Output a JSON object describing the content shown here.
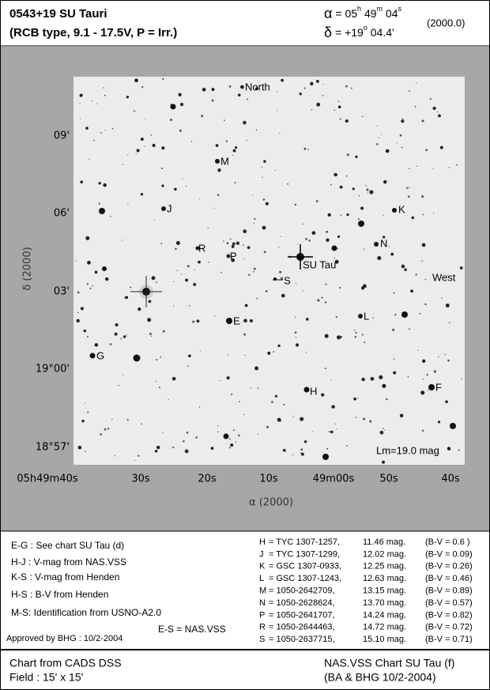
{
  "header": {
    "title": "0543+19 SU Tauri",
    "subtitle": "(RCB type, 9.1 - 17.5V, P = Irr.)",
    "ra": {
      "symbol": "α",
      "parts": [
        "= 05",
        "h",
        " 49",
        "m",
        " 04",
        "s"
      ]
    },
    "dec": {
      "symbol": "δ",
      "parts": [
        "= +19",
        "o",
        " 04.4'"
      ]
    },
    "epoch": "(2000.0)"
  },
  "field": {
    "labels": [
      "North",
      "West",
      "M",
      "J",
      "K",
      "R",
      "P",
      "N",
      "SU Tau",
      "S",
      "E",
      "L",
      "G",
      "H",
      "F"
    ],
    "limit": "Lm=19.0 mag",
    "dec_ticks": [
      "09'",
      "06'",
      "03'",
      "19°00'",
      "18°57'"
    ],
    "ra_ticks": [
      "05h49m40s",
      "30s",
      "20s",
      "10s",
      "49m00s",
      "50s",
      "40s"
    ],
    "x_axis_label": "α (2000)",
    "y_axis_label": "δ (2000)"
  },
  "notes": [
    "E-G : See chart SU Tau (d)",
    "H-J : V-mag from NAS.VSS",
    "K-S : V-mag from Henden",
    "H-S : B-V from Henden",
    "M-S: Identification from USNO-A2.0",
    "E-S = NAS.VSS",
    "Approved by BHG : 10/2-2004"
  ],
  "table": {
    "rows": [
      [
        "H",
        "= TYC 1307-1257,",
        "11.46 mag.",
        "(B-V = 0.6 )"
      ],
      [
        "J",
        "= TYC 1307-1299,",
        "12.02 mag.",
        "(B-V = 0.09)"
      ],
      [
        "K",
        "= GSC 1307-0933,",
        "12.25 mag.",
        "(B-V = 0.26)"
      ],
      [
        "L",
        "= GSC 1307-1243,",
        "12.63 mag.",
        "(B-V = 0.46)"
      ],
      [
        "M",
        "= 1050-2642709,",
        "13.15 mag.",
        "(B-V = 0.89)"
      ],
      [
        "N",
        "= 1050-2628624,",
        "13.70 mag.",
        "(B-V = 0.57)"
      ],
      [
        "P",
        "= 1050-2641707,",
        "14.24 mag.",
        "(B-V = 0.82)"
      ],
      [
        "R",
        "= 1050-2644463,",
        "14.72 mag.",
        "(B-V = 0.72)"
      ],
      [
        "S",
        "= 1050-2637715,",
        "15.10 mag.",
        "(B-V = 0.71)"
      ]
    ]
  },
  "footer": {
    "left": [
      "Chart from CADS DSS",
      "Field : 15' x 15'"
    ],
    "right": [
      "NAS.VSS Chart SU Tau (f)",
      "(BA & BHG 10/2-2004)"
    ]
  }
}
